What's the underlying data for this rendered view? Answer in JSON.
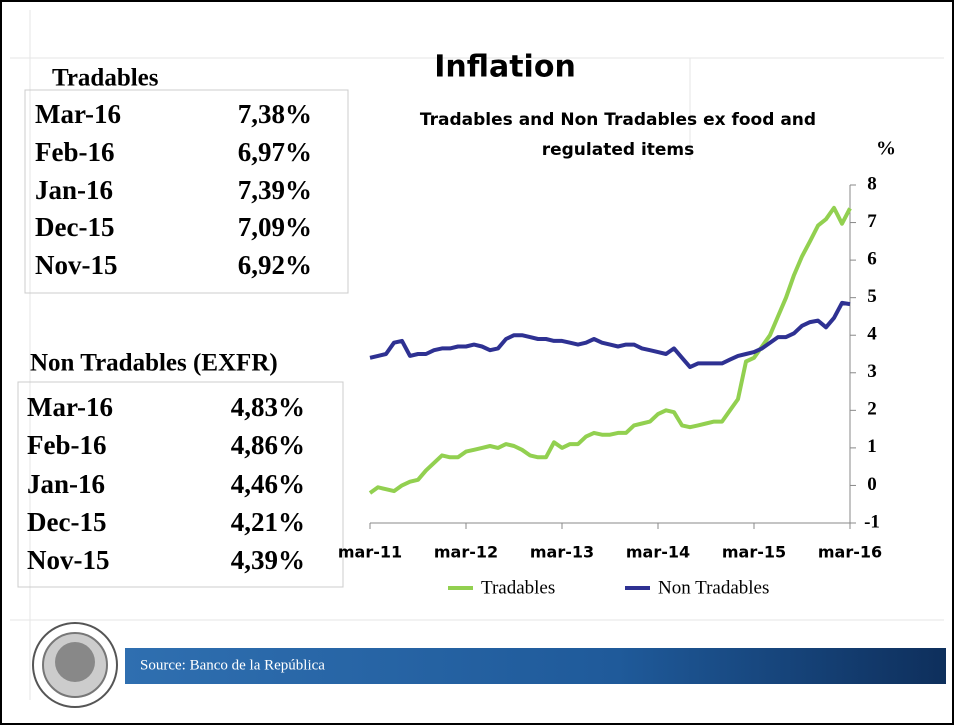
{
  "chart_data": {
    "type": "line",
    "title": "Inflation",
    "subtitle": [
      "Tradables and Non Tradables ex food and",
      "regulated items"
    ],
    "y_label": "%",
    "categories": [
      "mar-11",
      null,
      null,
      null,
      null,
      null,
      null,
      null,
      null,
      null,
      null,
      null,
      "mar-12",
      null,
      null,
      null,
      null,
      null,
      null,
      null,
      null,
      null,
      null,
      null,
      "mar-13",
      null,
      null,
      null,
      null,
      null,
      null,
      null,
      null,
      null,
      null,
      null,
      "mar-14",
      null,
      null,
      null,
      null,
      null,
      null,
      null,
      null,
      null,
      null,
      null,
      "mar-15",
      null,
      null,
      null,
      null,
      null,
      null,
      null,
      null,
      null,
      null,
      null,
      "mar-16"
    ],
    "series": [
      {
        "name": "Tradables",
        "color": "#92d050",
        "values": [
          -0.2,
          -0.05,
          -0.1,
          -0.15,
          0.0,
          0.1,
          0.15,
          0.4,
          0.6,
          0.8,
          0.75,
          0.75,
          0.9,
          0.95,
          1.0,
          1.05,
          1.0,
          1.1,
          1.05,
          0.95,
          0.8,
          0.75,
          0.75,
          1.15,
          1.0,
          1.1,
          1.1,
          1.3,
          1.4,
          1.35,
          1.35,
          1.4,
          1.4,
          1.6,
          1.65,
          1.7,
          1.9,
          2.0,
          1.95,
          1.6,
          1.55,
          1.6,
          1.65,
          1.7,
          1.7,
          2.0,
          2.3,
          3.3,
          3.4,
          3.7,
          4.0,
          4.5,
          5.0,
          5.6,
          6.1,
          6.5,
          6.92,
          7.09,
          7.39,
          6.97,
          7.38
        ]
      },
      {
        "name": "Non Tradables",
        "color": "#2e3192",
        "values": [
          3.4,
          3.45,
          3.5,
          3.8,
          3.85,
          3.45,
          3.5,
          3.5,
          3.6,
          3.65,
          3.65,
          3.7,
          3.7,
          3.75,
          3.7,
          3.6,
          3.65,
          3.9,
          4.0,
          4.0,
          3.95,
          3.9,
          3.9,
          3.85,
          3.85,
          3.8,
          3.75,
          3.8,
          3.9,
          3.8,
          3.75,
          3.7,
          3.75,
          3.75,
          3.65,
          3.6,
          3.55,
          3.5,
          3.65,
          3.4,
          3.15,
          3.25,
          3.25,
          3.25,
          3.25,
          3.35,
          3.45,
          3.5,
          3.55,
          3.65,
          3.8,
          3.95,
          3.95,
          4.05,
          4.25,
          4.35,
          4.39,
          4.21,
          4.46,
          4.86,
          4.83
        ]
      }
    ],
    "ylim": [
      -1,
      8
    ],
    "yticks": [
      -1,
      0,
      1,
      2,
      3,
      4,
      5,
      6,
      7,
      8
    ]
  },
  "tables": [
    {
      "title": "Tradables",
      "rows": [
        [
          "Mar-16",
          "7,38%"
        ],
        [
          "Feb-16",
          "6,97%"
        ],
        [
          "Jan-16",
          "7,39%"
        ],
        [
          "Dec-15",
          "7,09%"
        ],
        [
          "Nov-15",
          "6,92%"
        ]
      ]
    },
    {
      "title": "Non Tradables (EXFR)",
      "rows": [
        [
          "Mar-16",
          "4,83%"
        ],
        [
          "Feb-16",
          "4,86%"
        ],
        [
          "Jan-16",
          "4,46%"
        ],
        [
          "Dec-15",
          "4,21%"
        ],
        [
          "Nov-15",
          "4,39%"
        ]
      ]
    }
  ],
  "source": "Source: Banco de la República"
}
